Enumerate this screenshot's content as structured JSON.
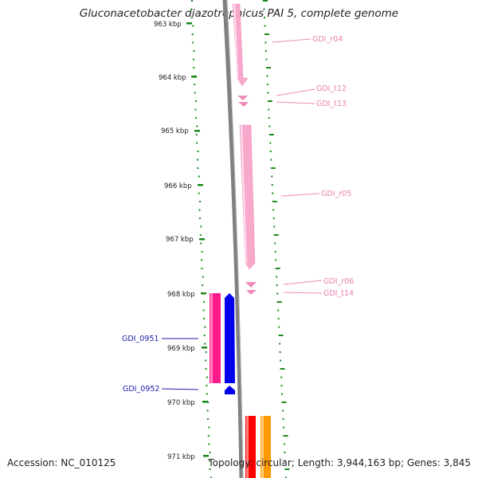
{
  "title": "Gluconacetobacter diazotrophicus PAI 5, complete genome",
  "accession": "Accession: NC_010125",
  "topology": "Topology: circular; Length: 3,944,163 bp; Genes: 3,845",
  "scale": {
    "labels": [
      "963 kbp",
      "964 kbp",
      "965 kbp",
      "966 kbp",
      "967 kbp",
      "968 kbp",
      "969 kbp",
      "970 kbp",
      "971 kbp"
    ]
  },
  "features": [
    {
      "label": "GDI_r04",
      "color": "#f7a8cb",
      "strand": "forward",
      "type": "rRNA"
    },
    {
      "label": "GDI_t12",
      "color": "#f08ab8",
      "strand": "forward",
      "type": "tRNA"
    },
    {
      "label": "GDI_t13",
      "color": "#f08ab8",
      "strand": "forward",
      "type": "tRNA"
    },
    {
      "label": "GDI_r05",
      "color": "#f7a8cb",
      "strand": "forward",
      "type": "rRNA"
    },
    {
      "label": "GDI_r06",
      "color": "#f08ab8",
      "strand": "forward",
      "type": "rRNA"
    },
    {
      "label": "GDI_t14",
      "color": "#f08ab8",
      "strand": "forward",
      "type": "tRNA"
    },
    {
      "label": "GDI_0951",
      "color": "#ff1a8c",
      "strand": "reverse",
      "type": "gene"
    },
    {
      "label": "GDI_0952",
      "color": "#0000ee",
      "strand": "reverse",
      "type": "CDS"
    }
  ],
  "colors": {
    "gc_skew": "#1a8a1a",
    "backbone": "#808080",
    "unlabeled_red": "#ff0000",
    "unlabeled_orange": "#ff9900"
  }
}
